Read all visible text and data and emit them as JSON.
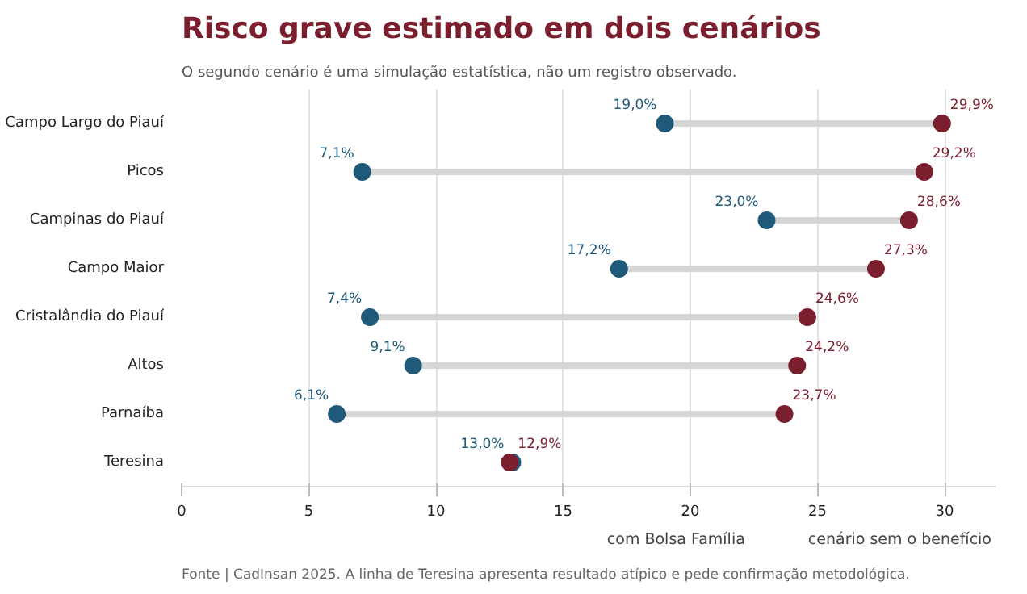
{
  "chart_data": {
    "type": "scatter",
    "orientation": "horizontal",
    "title": "Risco grave estimado em dois cenários",
    "subtitle": "O segundo cenário é uma simulação estatística, não um registro observado.",
    "annotations": [
      "Fonte | CadInsan 2025. A linha de Teresina apresenta resultado atípico e pede confirmação metodológica."
    ],
    "categories": [
      "Campo Largo do Piauí",
      "Picos",
      "Campinas do Piauí",
      "Campo Maior",
      "Cristalândia do Piauí",
      "Altos",
      "Parnaíba",
      "Teresina"
    ],
    "series": [
      {
        "name": "com Bolsa Família",
        "color": "#1f5a7a",
        "values": [
          19.0,
          7.1,
          23.0,
          17.2,
          7.4,
          9.1,
          6.1,
          13.0
        ],
        "value_labels": [
          "19,0%",
          "7,1%",
          "23,0%",
          "17,2%",
          "7,4%",
          "9,1%",
          "6,1%",
          "13,0%"
        ]
      },
      {
        "name": "cenário sem o benefício",
        "color": "#7b1e2e",
        "values": [
          29.9,
          29.2,
          28.6,
          27.3,
          24.6,
          24.2,
          23.7,
          12.9
        ],
        "value_labels": [
          "29,9%",
          "29,2%",
          "28,6%",
          "27,3%",
          "24,6%",
          "24,2%",
          "23,7%",
          "12,9%"
        ]
      }
    ],
    "xlim": [
      0,
      32
    ],
    "xticks": [
      0,
      5,
      10,
      15,
      20,
      25,
      30
    ],
    "grid": "x",
    "legend": "bottom right",
    "marker": "circle"
  }
}
